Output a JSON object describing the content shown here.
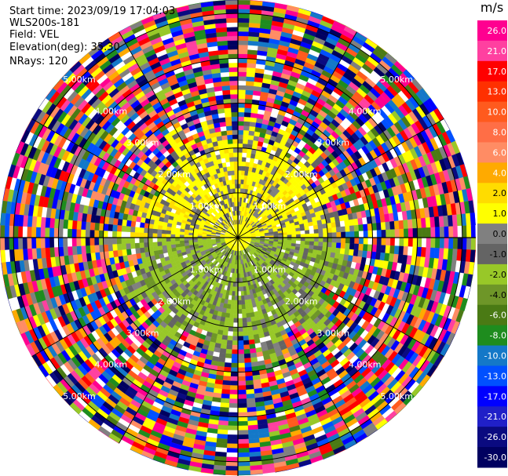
{
  "header": {
    "start_time": "Start time: 2023/09/19 17:04:03",
    "instrument": "WLS200s-181",
    "field": "Field: VEL",
    "elevation": "Elevation(deg): 35.30",
    "nrays": "NRays: 120"
  },
  "chart_data": {
    "type": "heatmap",
    "projection": "polar-ppi",
    "field": "VEL",
    "units": "m/s",
    "n_rays": 120,
    "elevation_deg": 35.3,
    "range_rings_km": [
      1,
      2,
      3,
      4,
      5
    ],
    "ring_labels": [
      "1.00km",
      "2.00km",
      "3.00km",
      "4.00km",
      "5.00km"
    ],
    "max_range_km": 5.3,
    "colorbar": {
      "unit_label": "m/s",
      "tick_labels": [
        "26.0",
        "21.0",
        "17.0",
        "13.0",
        "10.0",
        "8.0",
        "6.0",
        "4.0",
        "2.0",
        "1.0",
        "0.0",
        "-1.0",
        "-2.0",
        "-4.0",
        "-6.0",
        "-8.0",
        "-10.0",
        "-13.0",
        "-17.0",
        "-21.0",
        "-26.0",
        "-30.0"
      ],
      "colors": [
        "#ff0090",
        "#ff40a0",
        "#ff0000",
        "#ff3000",
        "#ff5a1e",
        "#ff6e46",
        "#ff8c64",
        "#ffaa00",
        "#ffdc00",
        "#ffff00",
        "#808080",
        "#646464",
        "#98c828",
        "#6e9628",
        "#4a7a14",
        "#1e8c1e",
        "#1478c8",
        "#0050ff",
        "#0000ff",
        "#2020c8",
        "#0a0a80",
        "#000060"
      ]
    }
  }
}
